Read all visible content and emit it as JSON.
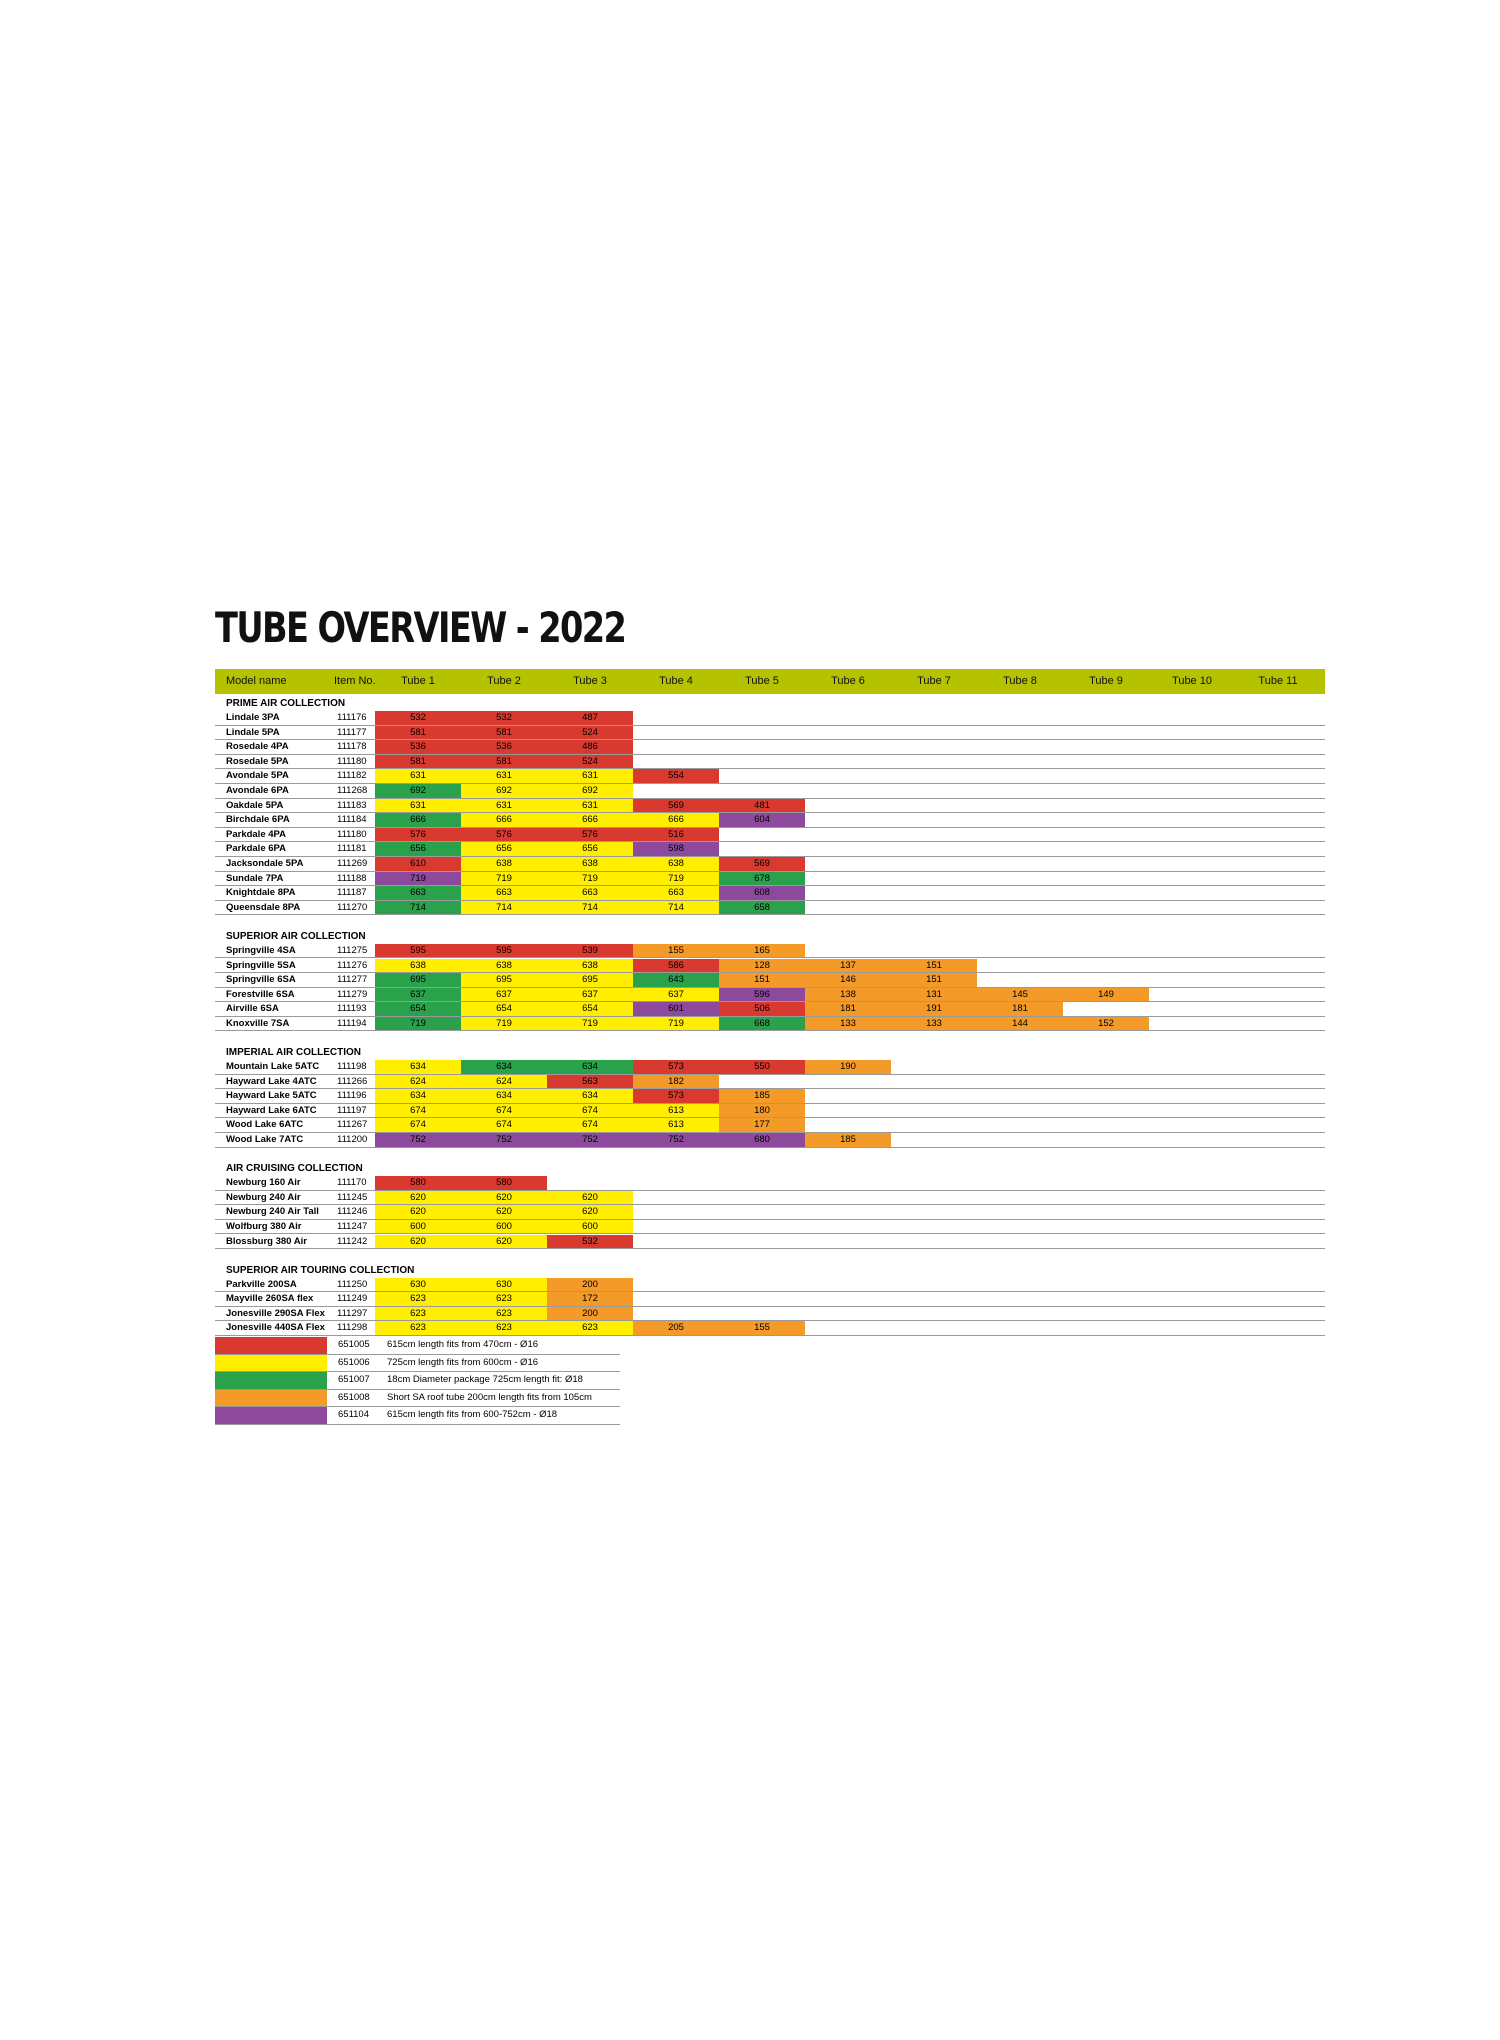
{
  "title": "TUBE OVERVIEW - 2022",
  "colors": {
    "R": "#d93a2f",
    "Y": "#ffee00",
    "G": "#2aa24c",
    "O": "#f39a28",
    "P": "#8d4a9c",
    "header": "#b5c200"
  },
  "header": [
    "Model name",
    "Item No.",
    "Tube 1",
    "Tube 2",
    "Tube 3",
    "Tube 4",
    "Tube 5",
    "Tube 6",
    "Tube 7",
    "Tube 8",
    "Tube 9",
    "Tube 10",
    "Tube 11"
  ],
  "sections": [
    {
      "title": "PRIME AIR COLLECTION",
      "rows": [
        {
          "name": "Lindale 3PA",
          "item": "111176",
          "cells": [
            [
              "532",
              "R"
            ],
            [
              "532",
              "R"
            ],
            [
              "487",
              "R"
            ]
          ]
        },
        {
          "name": "Lindale 5PA",
          "item": "111177",
          "cells": [
            [
              "581",
              "R"
            ],
            [
              "581",
              "R"
            ],
            [
              "524",
              "R"
            ]
          ]
        },
        {
          "name": "Rosedale 4PA",
          "item": "111178",
          "cells": [
            [
              "536",
              "R"
            ],
            [
              "536",
              "R"
            ],
            [
              "486",
              "R"
            ]
          ]
        },
        {
          "name": "Rosedale 5PA",
          "item": "111180",
          "cells": [
            [
              "581",
              "R"
            ],
            [
              "581",
              "R"
            ],
            [
              "524",
              "R"
            ]
          ]
        },
        {
          "name": "Avondale 5PA",
          "item": "111182",
          "cells": [
            [
              "631",
              "Y"
            ],
            [
              "631",
              "Y"
            ],
            [
              "631",
              "Y"
            ],
            [
              "554",
              "R"
            ]
          ]
        },
        {
          "name": "Avondale 6PA",
          "item": "111268",
          "cells": [
            [
              "692",
              "G"
            ],
            [
              "692",
              "Y"
            ],
            [
              "692",
              "Y"
            ]
          ]
        },
        {
          "name": "Oakdale 5PA",
          "item": "111183",
          "cells": [
            [
              "631",
              "Y"
            ],
            [
              "631",
              "Y"
            ],
            [
              "631",
              "Y"
            ],
            [
              "569",
              "R"
            ],
            [
              "481",
              "R"
            ]
          ]
        },
        {
          "name": "Birchdale 6PA",
          "item": "111184",
          "cells": [
            [
              "666",
              "G"
            ],
            [
              "666",
              "Y"
            ],
            [
              "666",
              "Y"
            ],
            [
              "666",
              "Y"
            ],
            [
              "604",
              "P"
            ]
          ]
        },
        {
          "name": "Parkdale 4PA",
          "item": "111180",
          "cells": [
            [
              "576",
              "R"
            ],
            [
              "576",
              "R"
            ],
            [
              "576",
              "R"
            ],
            [
              "516",
              "R"
            ]
          ]
        },
        {
          "name": "Parkdale 6PA",
          "item": "111181",
          "cells": [
            [
              "656",
              "G"
            ],
            [
              "656",
              "Y"
            ],
            [
              "656",
              "Y"
            ],
            [
              "598",
              "P"
            ]
          ]
        },
        {
          "name": "Jacksondale 5PA",
          "item": "111269",
          "cells": [
            [
              "610",
              "R"
            ],
            [
              "638",
              "Y"
            ],
            [
              "638",
              "Y"
            ],
            [
              "638",
              "Y"
            ],
            [
              "569",
              "R"
            ]
          ]
        },
        {
          "name": "Sundale 7PA",
          "item": "111188",
          "cells": [
            [
              "719",
              "P"
            ],
            [
              "719",
              "Y"
            ],
            [
              "719",
              "Y"
            ],
            [
              "719",
              "Y"
            ],
            [
              "678",
              "G"
            ]
          ]
        },
        {
          "name": "Knightdale 8PA",
          "item": "111187",
          "cells": [
            [
              "663",
              "G"
            ],
            [
              "663",
              "Y"
            ],
            [
              "663",
              "Y"
            ],
            [
              "663",
              "Y"
            ],
            [
              "608",
              "P"
            ]
          ]
        },
        {
          "name": "Queensdale 8PA",
          "item": "111270",
          "cells": [
            [
              "714",
              "G"
            ],
            [
              "714",
              "Y"
            ],
            [
              "714",
              "Y"
            ],
            [
              "714",
              "Y"
            ],
            [
              "658",
              "G"
            ]
          ]
        }
      ]
    },
    {
      "title": "SUPERIOR AIR COLLECTION",
      "rows": [
        {
          "name": "Springville 4SA",
          "item": "111275",
          "cells": [
            [
              "595",
              "R"
            ],
            [
              "595",
              "R"
            ],
            [
              "539",
              "R"
            ],
            [
              "155",
              "O"
            ],
            [
              "165",
              "O"
            ]
          ]
        },
        {
          "name": "Springville 5SA",
          "item": "111276",
          "cells": [
            [
              "638",
              "Y"
            ],
            [
              "638",
              "Y"
            ],
            [
              "638",
              "Y"
            ],
            [
              "586",
              "R"
            ],
            [
              "128",
              "O"
            ],
            [
              "137",
              "O"
            ],
            [
              "151",
              "O"
            ]
          ]
        },
        {
          "name": "Springville 6SA",
          "item": "111277",
          "cells": [
            [
              "695",
              "G"
            ],
            [
              "695",
              "Y"
            ],
            [
              "695",
              "Y"
            ],
            [
              "643",
              "G"
            ],
            [
              "151",
              "O"
            ],
            [
              "146",
              "O"
            ],
            [
              "151",
              "O"
            ]
          ]
        },
        {
          "name": "Forestville 6SA",
          "item": "111279",
          "cells": [
            [
              "637",
              "G"
            ],
            [
              "637",
              "Y"
            ],
            [
              "637",
              "Y"
            ],
            [
              "637",
              "Y"
            ],
            [
              "596",
              "P"
            ],
            [
              "138",
              "O"
            ],
            [
              "131",
              "O"
            ],
            [
              "145",
              "O"
            ],
            [
              "149",
              "O"
            ]
          ]
        },
        {
          "name": "Airville 6SA",
          "item": "111193",
          "cells": [
            [
              "654",
              "G"
            ],
            [
              "654",
              "Y"
            ],
            [
              "654",
              "Y"
            ],
            [
              "601",
              "P"
            ],
            [
              "506",
              "R"
            ],
            [
              "181",
              "O"
            ],
            [
              "191",
              "O"
            ],
            [
              "181",
              "O"
            ]
          ]
        },
        {
          "name": "Knoxville 7SA",
          "item": "111194",
          "cells": [
            [
              "719",
              "G"
            ],
            [
              "719",
              "Y"
            ],
            [
              "719",
              "Y"
            ],
            [
              "719",
              "Y"
            ],
            [
              "668",
              "G"
            ],
            [
              "133",
              "O"
            ],
            [
              "133",
              "O"
            ],
            [
              "144",
              "O"
            ],
            [
              "152",
              "O"
            ]
          ]
        }
      ]
    },
    {
      "title": "IMPERIAL AIR COLLECTION",
      "rows": [
        {
          "name": "Mountain Lake 5ATC",
          "item": "111198",
          "cells": [
            [
              "634",
              "Y"
            ],
            [
              "634",
              "G"
            ],
            [
              "634",
              "G"
            ],
            [
              "573",
              "R"
            ],
            [
              "550",
              "R"
            ],
            [
              "190",
              "O"
            ]
          ]
        },
        {
          "name": "Hayward Lake 4ATC",
          "item": "111266",
          "cells": [
            [
              "624",
              "Y"
            ],
            [
              "624",
              "Y"
            ],
            [
              "563",
              "R"
            ],
            [
              "182",
              "O"
            ]
          ]
        },
        {
          "name": "Hayward Lake 5ATC",
          "item": "111196",
          "cells": [
            [
              "634",
              "Y"
            ],
            [
              "634",
              "Y"
            ],
            [
              "634",
              "Y"
            ],
            [
              "573",
              "R"
            ],
            [
              "185",
              "O"
            ]
          ]
        },
        {
          "name": "Hayward Lake 6ATC",
          "item": "111197",
          "cells": [
            [
              "674",
              "Y"
            ],
            [
              "674",
              "Y"
            ],
            [
              "674",
              "Y"
            ],
            [
              "613",
              "Y"
            ],
            [
              "180",
              "O"
            ]
          ]
        },
        {
          "name": "Wood Lake 6ATC",
          "item": "111267",
          "cells": [
            [
              "674",
              "Y"
            ],
            [
              "674",
              "Y"
            ],
            [
              "674",
              "Y"
            ],
            [
              "613",
              "Y"
            ],
            [
              "177",
              "O"
            ]
          ]
        },
        {
          "name": "Wood Lake 7ATC",
          "item": "111200",
          "cells": [
            [
              "752",
              "P"
            ],
            [
              "752",
              "P"
            ],
            [
              "752",
              "P"
            ],
            [
              "752",
              "P"
            ],
            [
              "680",
              "P"
            ],
            [
              "185",
              "O"
            ]
          ]
        }
      ]
    },
    {
      "title": "AIR CRUISING COLLECTION",
      "rows": [
        {
          "name": "Newburg 160 Air",
          "item": "111170",
          "cells": [
            [
              "580",
              "R"
            ],
            [
              "580",
              "R"
            ]
          ]
        },
        {
          "name": "Newburg 240 Air",
          "item": "111245",
          "cells": [
            [
              "620",
              "Y"
            ],
            [
              "620",
              "Y"
            ],
            [
              "620",
              "Y"
            ]
          ]
        },
        {
          "name": "Newburg 240 Air Tall",
          "item": "111246",
          "cells": [
            [
              "620",
              "Y"
            ],
            [
              "620",
              "Y"
            ],
            [
              "620",
              "Y"
            ]
          ]
        },
        {
          "name": "Wolfburg 380 Air",
          "item": "111247",
          "cells": [
            [
              "600",
              "Y"
            ],
            [
              "600",
              "Y"
            ],
            [
              "600",
              "Y"
            ]
          ]
        },
        {
          "name": "Blossburg 380 Air",
          "item": "111242",
          "cells": [
            [
              "620",
              "Y"
            ],
            [
              "620",
              "Y"
            ],
            [
              "532",
              "R"
            ]
          ]
        }
      ]
    },
    {
      "title": "SUPERIOR AIR TOURING COLLECTION",
      "rows": [
        {
          "name": "Parkville 200SA",
          "item": "111250",
          "cells": [
            [
              "630",
              "Y"
            ],
            [
              "630",
              "Y"
            ],
            [
              "200",
              "O"
            ]
          ]
        },
        {
          "name": "Mayville 260SA flex",
          "item": "111249",
          "cells": [
            [
              "623",
              "Y"
            ],
            [
              "623",
              "Y"
            ],
            [
              "172",
              "O"
            ]
          ]
        },
        {
          "name": "Jonesville 290SA Flex",
          "item": "111297",
          "cells": [
            [
              "623",
              "Y"
            ],
            [
              "623",
              "Y"
            ],
            [
              "200",
              "O"
            ]
          ]
        },
        {
          "name": "Jonesville 440SA Flex",
          "item": "111298",
          "cells": [
            [
              "623",
              "Y"
            ],
            [
              "623",
              "Y"
            ],
            [
              "623",
              "Y"
            ],
            [
              "205",
              "O"
            ],
            [
              "155",
              "O"
            ]
          ]
        }
      ]
    }
  ],
  "legend": [
    {
      "color": "R",
      "code": "651005",
      "desc": "615cm length fits from 470cm - Ø16"
    },
    {
      "color": "Y",
      "code": "651006",
      "desc": "725cm length fits from 600cm - Ø16"
    },
    {
      "color": "G",
      "code": "651007",
      "desc": "18cm Diameter package 725cm length fit: Ø18"
    },
    {
      "color": "O",
      "code": "651008",
      "desc": "Short SA roof tube 200cm length fits from 105cm"
    },
    {
      "color": "P",
      "code": "651104",
      "desc": "615cm length fits from 600-752cm - Ø18"
    }
  ]
}
